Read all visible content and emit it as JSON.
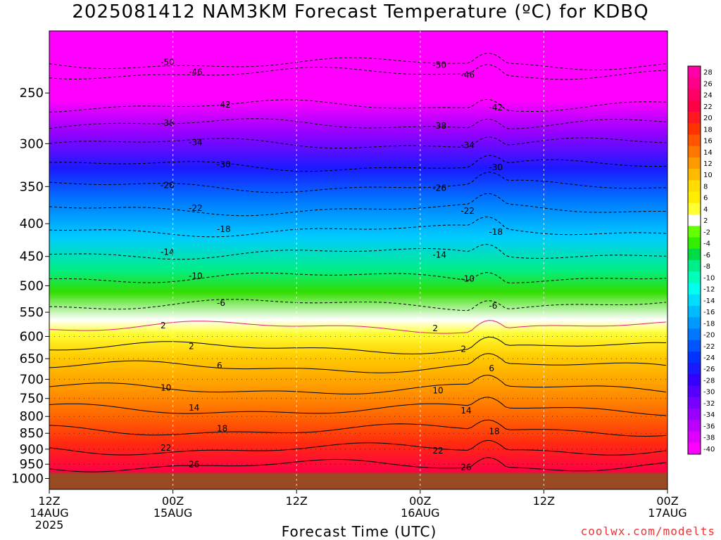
{
  "title": "2025081412 NAM3KM Forecast Temperature (ºC) for KDBQ",
  "xlabel": "Forecast Time (UTC)",
  "credit": "coolwx.com/modelts",
  "chart_data": {
    "type": "heatmap",
    "title": "2025081412 NAM3KM Forecast Temperature (ºC) for KDBQ",
    "xlabel": "Forecast Time (UTC)",
    "ylabel": "",
    "y_scale": "log-pressure (inverted)",
    "ylim": [
      1040,
      200
    ],
    "xlim": [
      "2025-08-14 12Z",
      "2025-08-17 00Z"
    ],
    "y_ticks": [
      250,
      300,
      350,
      400,
      450,
      500,
      550,
      600,
      650,
      700,
      750,
      800,
      850,
      900,
      950,
      1000
    ],
    "x_ticks": [
      {
        "value": "2025-08-14 12Z",
        "lines": [
          "12Z",
          "14AUG",
          "2025"
        ]
      },
      {
        "value": "2025-08-15 00Z",
        "lines": [
          "00Z",
          "15AUG"
        ]
      },
      {
        "value": "2025-08-15 12Z",
        "lines": [
          "12Z"
        ]
      },
      {
        "value": "2025-08-16 00Z",
        "lines": [
          "00Z",
          "16AUG"
        ]
      },
      {
        "value": "2025-08-16 12Z",
        "lines": [
          "12Z"
        ]
      },
      {
        "value": "2025-08-17 00Z",
        "lines": [
          "00Z",
          "17AUG"
        ]
      }
    ],
    "colorbar_levels": [
      28,
      26,
      24,
      22,
      20,
      18,
      16,
      14,
      12,
      10,
      8,
      6,
      4,
      2,
      -2,
      -4,
      -6,
      -8,
      -10,
      -12,
      -14,
      -16,
      -18,
      -20,
      -22,
      -24,
      -26,
      -28,
      -30,
      -32,
      -34,
      -36,
      -38,
      -40
    ],
    "colorbar_colors": [
      "#ff00a8",
      "#ff0088",
      "#ff0066",
      "#ff0044",
      "#ff1822",
      "#ff3300",
      "#ff5500",
      "#ff7700",
      "#ff9900",
      "#ffbb00",
      "#ffdd00",
      "#ffee00",
      "#ffff33",
      "#ffffff",
      "#66ff00",
      "#33ee00",
      "#00dd44",
      "#00ee88",
      "#00ffbb",
      "#00ffee",
      "#00ddff",
      "#00bbff",
      "#0099ff",
      "#0077ff",
      "#0055ff",
      "#0033ff",
      "#1a1aff",
      "#3300ff",
      "#5500ff",
      "#7700ff",
      "#9900ff",
      "#bb00ff",
      "#dd00ff",
      "#ff00ff"
    ],
    "contours": [
      {
        "temp": 50,
        "p": 225
      },
      {
        "temp": 46,
        "p": 233
      },
      {
        "temp": 42,
        "p": 262
      },
      {
        "temp": 38,
        "p": 280
      },
      {
        "temp": 34,
        "p": 300
      },
      {
        "temp": 30,
        "p": 325
      },
      {
        "temp": 26,
        "p": 350
      },
      {
        "temp": 22,
        "p": 380
      },
      {
        "temp": 18,
        "p": 410
      },
      {
        "temp": 14,
        "p": 445
      },
      {
        "temp": 10,
        "p": 485
      },
      {
        "temp": 6,
        "p": 535
      },
      {
        "temp": 2,
        "p": 580
      },
      {
        "temp": 2,
        "p": 625
      },
      {
        "temp": 6,
        "p": 670
      },
      {
        "temp": 10,
        "p": 725
      },
      {
        "temp": 14,
        "p": 780
      },
      {
        "temp": 18,
        "p": 840
      },
      {
        "temp": 22,
        "p": 900
      },
      {
        "temp": 26,
        "p": 955
      }
    ],
    "surface_below_p": 980,
    "grid": true
  }
}
